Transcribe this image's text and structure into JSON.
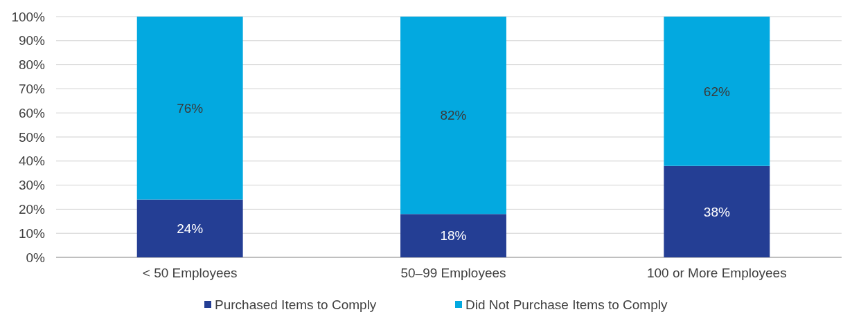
{
  "chart_data": {
    "type": "bar",
    "stacked": true,
    "categories": [
      "< 50 Employees",
      "50–99 Employees",
      "100 or More Employees"
    ],
    "series": [
      {
        "name": "Purchased Items to Comply",
        "color": "#243e94",
        "values": [
          24,
          18,
          38
        ],
        "value_labels": [
          "24%",
          "18%",
          "38%"
        ]
      },
      {
        "name": "Did Not Purchase Items to Comply",
        "color": "#03a9e0",
        "values": [
          76,
          82,
          62
        ],
        "value_labels": [
          "76%",
          "82%",
          "62%"
        ]
      }
    ],
    "ylim": [
      0,
      100
    ],
    "yticks": [
      {
        "value": 0,
        "label": "0%"
      },
      {
        "value": 10,
        "label": "10%"
      },
      {
        "value": 20,
        "label": "20%"
      },
      {
        "value": 30,
        "label": "30%"
      },
      {
        "value": 40,
        "label": "40%"
      },
      {
        "value": 50,
        "label": "50%"
      },
      {
        "value": 60,
        "label": "60%"
      },
      {
        "value": 70,
        "label": "70%"
      },
      {
        "value": 80,
        "label": "80%"
      },
      {
        "value": 90,
        "label": "90%"
      },
      {
        "value": 100,
        "label": "100%"
      }
    ],
    "grid": "y",
    "legend": "bottom"
  }
}
